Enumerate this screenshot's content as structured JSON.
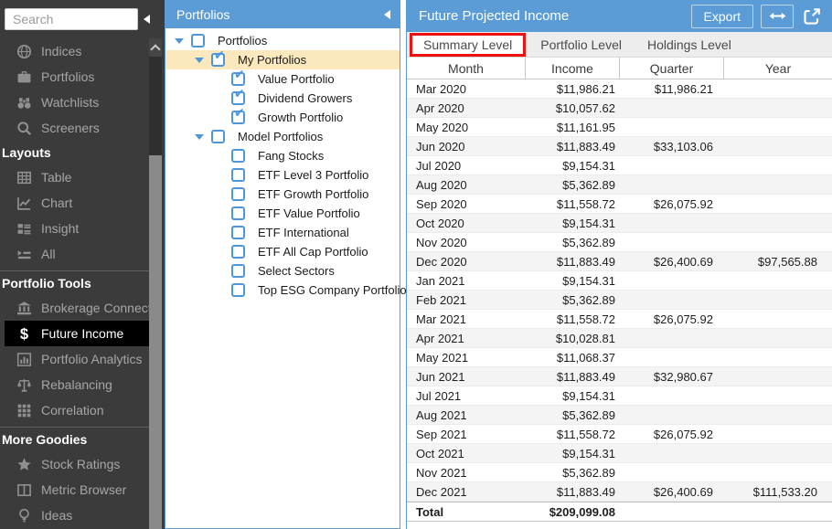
{
  "colors": {
    "header_blue": "#5b9cd6",
    "annotation_red": "#ee1111",
    "checkbox_blue": "#4f96d8",
    "selected_row_yellow": "#fbe9bd",
    "sidebar_bg": "#3b3b3b",
    "sidebar_selected_bg": "#000000"
  },
  "sidebar": {
    "search_placeholder": "Search",
    "sections": [
      {
        "items": [
          {
            "icon": "globe",
            "label": "Indices"
          },
          {
            "icon": "briefcase",
            "label": "Portfolios"
          },
          {
            "icon": "binoculars",
            "label": "Watchlists"
          },
          {
            "icon": "magnifier",
            "label": "Screeners"
          }
        ]
      },
      {
        "header": "Layouts",
        "items": [
          {
            "icon": "table-grid",
            "label": "Table"
          },
          {
            "icon": "chart-line",
            "label": "Chart"
          },
          {
            "icon": "insight-list",
            "label": "Insight"
          },
          {
            "icon": "all-list",
            "label": "All"
          }
        ]
      },
      {
        "header": "Portfolio Tools",
        "divider": true,
        "items": [
          {
            "icon": "bank",
            "label": "Brokerage Connect"
          },
          {
            "icon": "dollar",
            "label": "Future Income",
            "selected": true
          },
          {
            "icon": "bar-chart",
            "label": "Portfolio Analytics"
          },
          {
            "icon": "scales",
            "label": "Rebalancing"
          },
          {
            "icon": "correlation-grid",
            "label": "Correlation"
          }
        ]
      },
      {
        "header": "More Goodies",
        "divider": true,
        "items": [
          {
            "icon": "star",
            "label": "Stock Ratings"
          },
          {
            "icon": "metric-columns",
            "label": "Metric Browser"
          },
          {
            "icon": "lightbulb",
            "label": "Ideas"
          }
        ]
      }
    ]
  },
  "tree_panel": {
    "title": "Portfolios",
    "nodes": [
      {
        "label": "Portfolios",
        "level": 0,
        "arrow": true,
        "checked": false
      },
      {
        "label": "My Portfolios",
        "level": 1,
        "arrow": true,
        "checked": true,
        "selected": true
      },
      {
        "label": "Value Portfolio",
        "level": 2,
        "checked": true
      },
      {
        "label": "Dividend Growers",
        "level": 2,
        "checked": true
      },
      {
        "label": "Growth Portfolio",
        "level": 2,
        "checked": true
      },
      {
        "label": "Model Portfolios",
        "level": 1,
        "arrow": true,
        "checked": false
      },
      {
        "label": "Fang Stocks",
        "level": 2,
        "checked": false
      },
      {
        "label": "ETF Level 3 Portfolio",
        "level": 2,
        "checked": false
      },
      {
        "label": "ETF Growth Portfolio",
        "level": 2,
        "checked": false
      },
      {
        "label": "ETF Value Portfolio",
        "level": 2,
        "checked": false
      },
      {
        "label": "ETF International",
        "level": 2,
        "checked": false
      },
      {
        "label": "ETF All Cap Portfolio",
        "level": 2,
        "checked": false
      },
      {
        "label": "Select Sectors",
        "level": 2,
        "checked": false
      },
      {
        "label": "Top ESG Company Portfolio",
        "level": 2,
        "checked": false
      }
    ]
  },
  "main": {
    "title": "Future Projected Income",
    "export_label": "Export",
    "tabs": [
      {
        "label": "Summary Level",
        "selected": true,
        "annotated": true
      },
      {
        "label": "Portfolio Level"
      },
      {
        "label": "Holdings Level"
      }
    ],
    "table": {
      "columns": [
        "Month",
        "Income",
        "Quarter",
        "Year"
      ],
      "rows": [
        [
          "Mar 2020",
          "$11,986.21",
          "$11,986.21",
          ""
        ],
        [
          "Apr 2020",
          "$10,057.62",
          "",
          ""
        ],
        [
          "May 2020",
          "$11,161.95",
          "",
          ""
        ],
        [
          "Jun 2020",
          "$11,883.49",
          "$33,103.06",
          ""
        ],
        [
          "Jul 2020",
          "$9,154.31",
          "",
          ""
        ],
        [
          "Aug 2020",
          "$5,362.89",
          "",
          ""
        ],
        [
          "Sep 2020",
          "$11,558.72",
          "$26,075.92",
          ""
        ],
        [
          "Oct 2020",
          "$9,154.31",
          "",
          ""
        ],
        [
          "Nov 2020",
          "$5,362.89",
          "",
          ""
        ],
        [
          "Dec 2020",
          "$11,883.49",
          "$26,400.69",
          "$97,565.88"
        ],
        [
          "Jan 2021",
          "$9,154.31",
          "",
          ""
        ],
        [
          "Feb 2021",
          "$5,362.89",
          "",
          ""
        ],
        [
          "Mar 2021",
          "$11,558.72",
          "$26,075.92",
          ""
        ],
        [
          "Apr 2021",
          "$10,028.81",
          "",
          ""
        ],
        [
          "May 2021",
          "$11,068.37",
          "",
          ""
        ],
        [
          "Jun 2021",
          "$11,883.49",
          "$32,980.67",
          ""
        ],
        [
          "Jul 2021",
          "$9,154.31",
          "",
          ""
        ],
        [
          "Aug 2021",
          "$5,362.89",
          "",
          ""
        ],
        [
          "Sep 2021",
          "$11,558.72",
          "$26,075.92",
          ""
        ],
        [
          "Oct 2021",
          "$9,154.31",
          "",
          ""
        ],
        [
          "Nov 2021",
          "$5,362.89",
          "",
          ""
        ],
        [
          "Dec 2021",
          "$11,883.49",
          "$26,400.69",
          "$111,533.20"
        ]
      ],
      "total_row": [
        "Total",
        "$209,099.08",
        "",
        ""
      ]
    }
  }
}
